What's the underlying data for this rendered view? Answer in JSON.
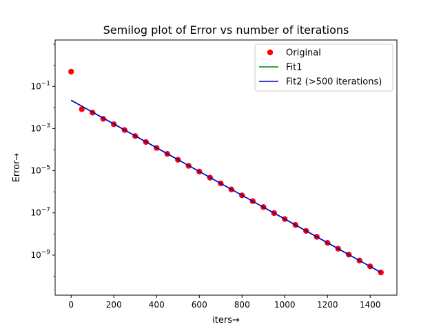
{
  "chart_data": {
    "type": "scatter",
    "title": "Semilog plot of Error vs number of iterations",
    "xlabel": "iters→",
    "ylabel": "Error→",
    "xlim": [
      -75,
      1525
    ],
    "ylim_log10": [
      -10.9,
      1.2
    ],
    "yscale": "log",
    "grid": false,
    "legend_position": "top-right",
    "x_ticks": [
      0,
      200,
      400,
      600,
      800,
      1000,
      1200,
      1400
    ],
    "x_tick_labels": [
      "0",
      "200",
      "400",
      "600",
      "800",
      "1000",
      "1200",
      "1400"
    ],
    "y_ticks_log10": [
      -9,
      -7,
      -5,
      -3,
      -1
    ],
    "y_tick_labels": [
      {
        "base": "10",
        "exp": "−9"
      },
      {
        "base": "10",
        "exp": "−7"
      },
      {
        "base": "10",
        "exp": "−5"
      },
      {
        "base": "10",
        "exp": "−3"
      },
      {
        "base": "10",
        "exp": "−1"
      }
    ],
    "series": [
      {
        "name": "Original",
        "kind": "scatter",
        "color": "#ff0000",
        "x": [
          0,
          50,
          100,
          150,
          200,
          250,
          300,
          350,
          400,
          450,
          500,
          550,
          600,
          650,
          700,
          750,
          800,
          850,
          900,
          950,
          1000,
          1050,
          1100,
          1150,
          1200,
          1250,
          1300,
          1350,
          1400,
          1450
        ],
        "y": [
          0.5,
          0.0083,
          0.0057,
          0.0029,
          0.0016,
          0.00085,
          0.00044,
          0.00023,
          0.00012,
          6.3e-05,
          3.3e-05,
          1.7e-05,
          9.1e-06,
          4.7e-06,
          2.5e-06,
          1.3e-06,
          6.8e-07,
          3.6e-07,
          1.9e-07,
          9.8e-08,
          5.1e-08,
          2.7e-08,
          1.4e-08,
          7.3e-09,
          3.8e-09,
          2e-09,
          1.05e-09,
          5.5e-10,
          2.9e-10,
          1.5e-10
        ]
      },
      {
        "name": "Fit1",
        "kind": "line",
        "color": "#008000",
        "x": [
          0,
          1450
        ],
        "y": [
          0.022,
          1.5e-10
        ]
      },
      {
        "name": "Fit2 (>500 iterations)",
        "kind": "line",
        "color": "#0000cc",
        "x": [
          0,
          1450
        ],
        "y": [
          0.022,
          1.5e-10
        ]
      }
    ]
  }
}
